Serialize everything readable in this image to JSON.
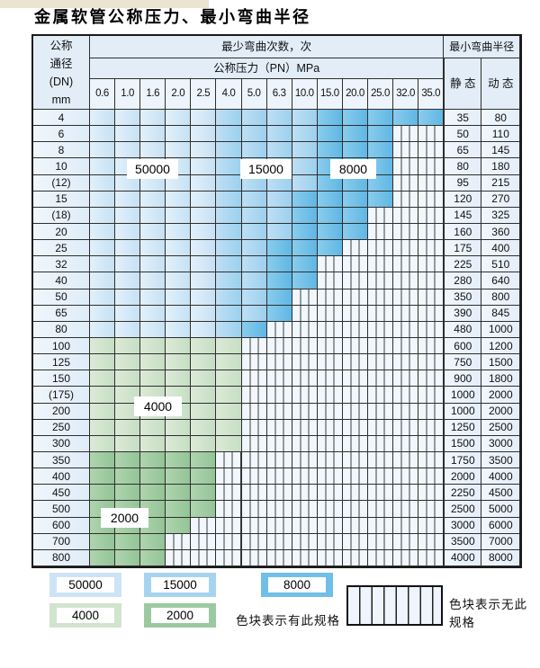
{
  "title": "金属软管公称压力、最小弯曲半径",
  "table": {
    "header": {
      "dn_lines": [
        "公称",
        "通径",
        "(DN)",
        "mm"
      ],
      "bend_times": "最少弯曲次数，次",
      "pressure": "公称压力（PN）MPa",
      "radius": "最小弯曲半径",
      "static": "静 态",
      "dynamic": "动 态",
      "pressures": [
        "0.6",
        "1.0",
        "1.6",
        "2.0",
        "2.5",
        "4.0",
        "5.0",
        "6.3",
        "10.0",
        "15.0",
        "20.0",
        "25.0",
        "32.0",
        "35.0"
      ]
    },
    "band_meaning": {
      "b1": "50000",
      "b2": "15000",
      "b3": "8000",
      "g1": "4000",
      "g2": "2000",
      "hatch": "无此规格"
    },
    "rows": [
      {
        "dn": "4",
        "bands": [
          [
            "b1",
            5
          ],
          [
            "b2",
            9
          ],
          [
            "b3",
            14
          ]
        ],
        "static": "35",
        "dynamic": "80"
      },
      {
        "dn": "6",
        "bands": [
          [
            "b1",
            5
          ],
          [
            "b2",
            9
          ],
          [
            "b3",
            12
          ]
        ],
        "static": "50",
        "dynamic": "110"
      },
      {
        "dn": "8",
        "bands": [
          [
            "b1",
            5
          ],
          [
            "b2",
            9
          ],
          [
            "b3",
            12
          ]
        ],
        "static": "65",
        "dynamic": "145"
      },
      {
        "dn": "10",
        "bands": [
          [
            "b1",
            5
          ],
          [
            "b2",
            9
          ],
          [
            "b3",
            12
          ]
        ],
        "static": "80",
        "dynamic": "180"
      },
      {
        "dn": "(12)",
        "bands": [
          [
            "b1",
            5
          ],
          [
            "b2",
            9
          ],
          [
            "b3",
            12
          ]
        ],
        "static": "95",
        "dynamic": "215"
      },
      {
        "dn": "15",
        "bands": [
          [
            "b1",
            5
          ],
          [
            "b2",
            8
          ],
          [
            "b3",
            12
          ]
        ],
        "static": "120",
        "dynamic": "270"
      },
      {
        "dn": "(18)",
        "bands": [
          [
            "b1",
            5
          ],
          [
            "b2",
            8
          ],
          [
            "b3",
            11
          ]
        ],
        "static": "145",
        "dynamic": "325"
      },
      {
        "dn": "20",
        "bands": [
          [
            "b1",
            5
          ],
          [
            "b2",
            8
          ],
          [
            "b3",
            11
          ]
        ],
        "static": "160",
        "dynamic": "360"
      },
      {
        "dn": "25",
        "bands": [
          [
            "b1",
            5
          ],
          [
            "b2",
            7
          ],
          [
            "b3",
            10
          ]
        ],
        "static": "175",
        "dynamic": "400"
      },
      {
        "dn": "32",
        "bands": [
          [
            "b1",
            5
          ],
          [
            "b2",
            7
          ],
          [
            "b3",
            9
          ]
        ],
        "static": "225",
        "dynamic": "510"
      },
      {
        "dn": "40",
        "bands": [
          [
            "b1",
            5
          ],
          [
            "b2",
            7
          ],
          [
            "b3",
            9
          ]
        ],
        "static": "280",
        "dynamic": "640"
      },
      {
        "dn": "50",
        "bands": [
          [
            "b1",
            5
          ],
          [
            "b2",
            7
          ],
          [
            "b3",
            8
          ]
        ],
        "static": "350",
        "dynamic": "800"
      },
      {
        "dn": "65",
        "bands": [
          [
            "b1",
            5
          ],
          [
            "b2",
            7
          ],
          [
            "b3",
            8
          ]
        ],
        "static": "390",
        "dynamic": "845"
      },
      {
        "dn": "80",
        "bands": [
          [
            "b1",
            5
          ],
          [
            "b2",
            6
          ],
          [
            "b3",
            7
          ]
        ],
        "static": "480",
        "dynamic": "1000"
      },
      {
        "dn": "100",
        "bands": [
          [
            "g1",
            6
          ]
        ],
        "static": "600",
        "dynamic": "1200"
      },
      {
        "dn": "125",
        "bands": [
          [
            "g1",
            6
          ]
        ],
        "static": "750",
        "dynamic": "1500"
      },
      {
        "dn": "150",
        "bands": [
          [
            "g1",
            6
          ]
        ],
        "static": "900",
        "dynamic": "1800"
      },
      {
        "dn": "(175)",
        "bands": [
          [
            "g1",
            6
          ]
        ],
        "static": "1000",
        "dynamic": "2000"
      },
      {
        "dn": "200",
        "bands": [
          [
            "g1",
            6
          ]
        ],
        "static": "1000",
        "dynamic": "2000"
      },
      {
        "dn": "250",
        "bands": [
          [
            "g1",
            6
          ]
        ],
        "static": "1250",
        "dynamic": "2500"
      },
      {
        "dn": "300",
        "bands": [
          [
            "g1",
            6
          ]
        ],
        "static": "1500",
        "dynamic": "3000"
      },
      {
        "dn": "350",
        "bands": [
          [
            "g2",
            5
          ]
        ],
        "static": "1750",
        "dynamic": "3500"
      },
      {
        "dn": "400",
        "bands": [
          [
            "g2",
            5
          ]
        ],
        "static": "2000",
        "dynamic": "4000"
      },
      {
        "dn": "450",
        "bands": [
          [
            "g2",
            5
          ]
        ],
        "static": "2250",
        "dynamic": "4500"
      },
      {
        "dn": "500",
        "bands": [
          [
            "g2",
            5
          ]
        ],
        "static": "2500",
        "dynamic": "5000"
      },
      {
        "dn": "600",
        "bands": [
          [
            "g2",
            4
          ]
        ],
        "static": "3000",
        "dynamic": "6000"
      },
      {
        "dn": "700",
        "bands": [
          [
            "g2",
            3
          ]
        ],
        "static": "3500",
        "dynamic": "7000"
      },
      {
        "dn": "800",
        "bands": [
          [
            "g2",
            3
          ]
        ],
        "static": "4000",
        "dynamic": "8000"
      }
    ]
  },
  "overlay_labels": [
    "50000",
    "15000",
    "8000",
    "4000",
    "2000"
  ],
  "legend": {
    "swatches": [
      {
        "label": "50000",
        "band": "b1"
      },
      {
        "label": "15000",
        "band": "b2"
      },
      {
        "label": "8000",
        "band": "b3"
      },
      {
        "label": "4000",
        "band": "g1"
      },
      {
        "label": "2000",
        "band": "g2"
      }
    ],
    "has_spec_text": "色块表示有此规格",
    "no_spec_text": "色块表示无此规格"
  },
  "colors": {
    "band_b1": "#cde4f6",
    "band_b2": "#a6d4f0",
    "band_b3": "#6fbfe8",
    "band_g1": "#d2e4cd",
    "band_g2": "#9ccaa0",
    "hatch_bg": "#f1f7fd",
    "grid_line": "#2e2e2e",
    "header_bg": "#e2edf8",
    "deco_strip": "#ebe4d0"
  }
}
